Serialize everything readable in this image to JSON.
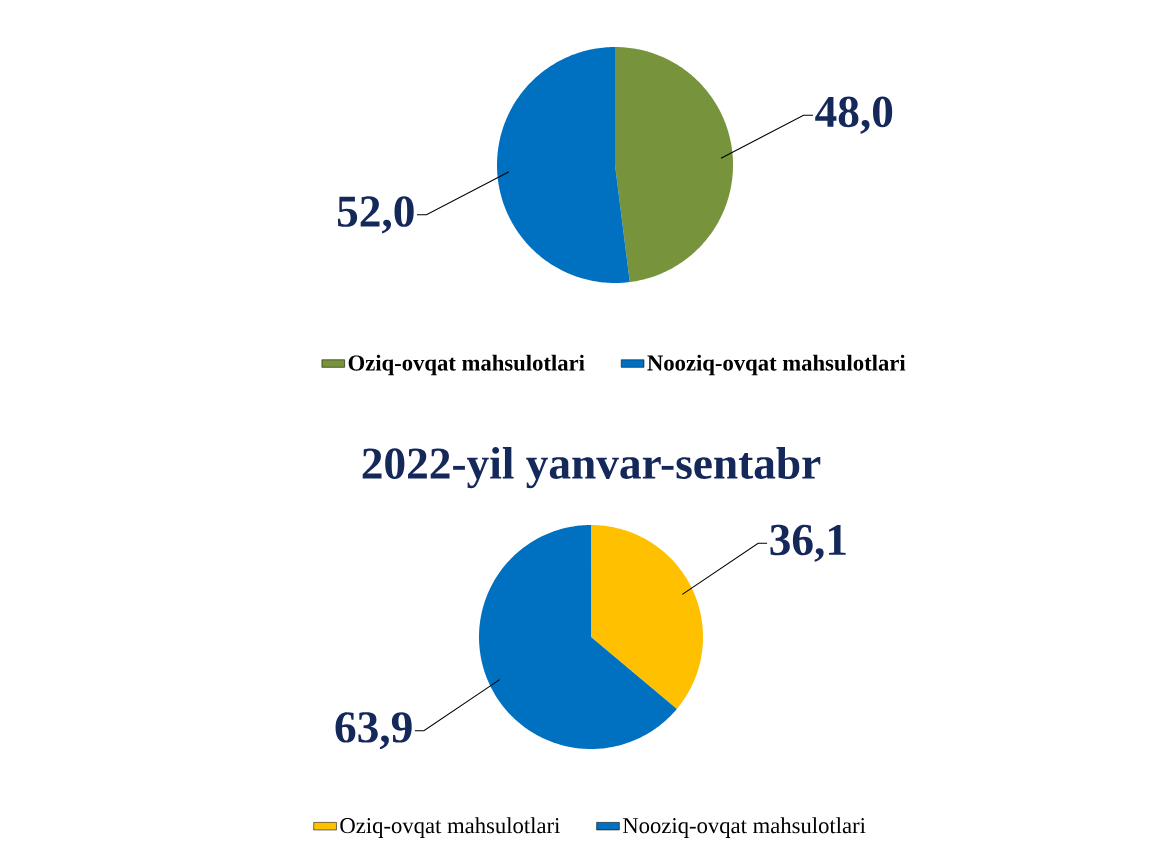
{
  "chart_data": [
    {
      "type": "pie",
      "categories": [
        "Oziq-ovqat mahsulotlari",
        "Nooziq-ovqat mahsulotlari"
      ],
      "values": [
        48.0,
        52.0
      ],
      "colors": [
        "#77933c",
        "#0070c0"
      ],
      "value_labels": [
        "48,0",
        "52,0"
      ],
      "legend": "bottom"
    },
    {
      "type": "pie",
      "title": "2022-yil yanvar-sentabr",
      "categories": [
        "Oziq-ovqat mahsulotlari",
        "Nooziq-ovqat mahsulotlari"
      ],
      "values": [
        36.1,
        63.9
      ],
      "colors": [
        "#ffc000",
        "#0070c0"
      ],
      "value_labels": [
        "36,1",
        "63,9"
      ],
      "legend": "bottom"
    }
  ]
}
